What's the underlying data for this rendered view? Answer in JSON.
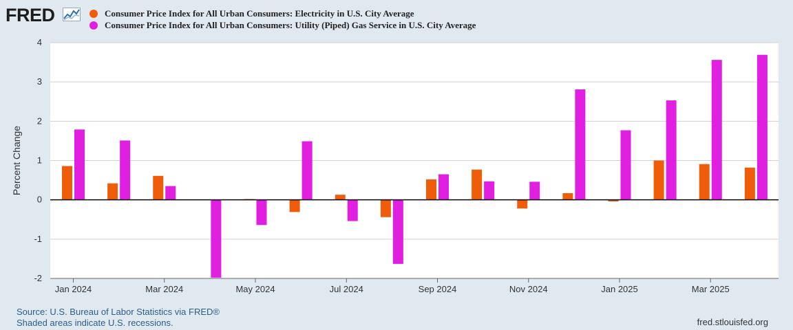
{
  "header": {
    "logo_text": "FRED",
    "logo_icon": "line-chart-icon"
  },
  "legend": [
    {
      "label": "Consumer Price Index for All Urban Consumers: Electricity in U.S. City Average",
      "color": "#f05d0a"
    },
    {
      "label": "Consumer Price Index for All Urban Consumers: Utility (Piped) Gas Service in U.S. City Average",
      "color": "#e11fe1"
    }
  ],
  "chart_data": {
    "type": "bar",
    "ylabel": "Percent Change",
    "xlabel": "",
    "ylim": [
      -2,
      4
    ],
    "yticks": [
      -2,
      -1,
      0,
      1,
      2,
      3,
      4
    ],
    "grid": true,
    "categories": [
      "Jan 2024",
      "Feb 2024",
      "Mar 2024",
      "Apr 2024",
      "May 2024",
      "Jun 2024",
      "Jul 2024",
      "Aug 2024",
      "Sep 2024",
      "Oct 2024",
      "Nov 2024",
      "Dec 2024",
      "Jan 2025",
      "Feb 2025",
      "Mar 2025",
      "Apr 2025"
    ],
    "xtick_labels": [
      {
        "index": 0,
        "label": "Jan 2024"
      },
      {
        "index": 2,
        "label": "Mar 2024"
      },
      {
        "index": 4,
        "label": "May 2024"
      },
      {
        "index": 6,
        "label": "Jul 2024"
      },
      {
        "index": 8,
        "label": "Sep 2024"
      },
      {
        "index": 10,
        "label": "Nov 2024"
      },
      {
        "index": 12,
        "label": "Jan 2025"
      },
      {
        "index": 14,
        "label": "Mar 2025"
      }
    ],
    "series": [
      {
        "name": "Electricity",
        "color": "#f05d0a",
        "values": [
          0.86,
          0.42,
          0.61,
          0.0,
          0.02,
          -0.31,
          0.13,
          -0.44,
          0.52,
          0.77,
          -0.22,
          0.17,
          -0.04,
          1.0,
          0.91,
          0.82
        ]
      },
      {
        "name": "Utility (Piped) Gas Service",
        "color": "#e11fe1",
        "values": [
          1.79,
          1.51,
          0.35,
          -1.98,
          -0.64,
          1.49,
          -0.54,
          -1.63,
          0.65,
          0.47,
          0.46,
          2.81,
          1.77,
          2.53,
          3.56,
          3.69
        ]
      }
    ]
  },
  "footer": {
    "source": "Source: U.S. Bureau of Labor Statistics via FRED®",
    "recessions_note": "Shaded areas indicate U.S. recessions.",
    "url": "fred.stlouisfed.org"
  }
}
